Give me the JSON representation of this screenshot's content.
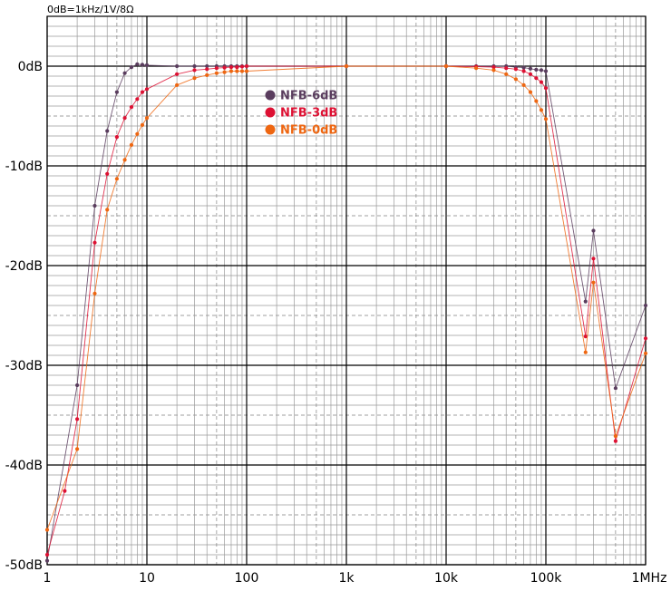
{
  "chart_data": {
    "type": "line",
    "title": "",
    "note": "0dB=1kHz/1V/8Ω",
    "xlabel": "",
    "ylabel": "",
    "x_scale": "log",
    "xlim": [
      1,
      1000000
    ],
    "ylim": [
      -50,
      5
    ],
    "grid": true,
    "legend_position": "upper-center",
    "x_ticks": [
      {
        "value": 1,
        "label": "1"
      },
      {
        "value": 10,
        "label": "10"
      },
      {
        "value": 100,
        "label": "100"
      },
      {
        "value": 1000,
        "label": "1k"
      },
      {
        "value": 10000,
        "label": "10k"
      },
      {
        "value": 100000,
        "label": "100k"
      },
      {
        "value": 1000000,
        "label": "1MHz"
      }
    ],
    "y_ticks": [
      {
        "value": 0,
        "label": "0dB"
      },
      {
        "value": -10,
        "label": "-10dB"
      },
      {
        "value": -20,
        "label": "-20dB"
      },
      {
        "value": -30,
        "label": "-30dB"
      },
      {
        "value": -40,
        "label": "-40dB"
      },
      {
        "value": -50,
        "label": "-50dB"
      }
    ],
    "series": [
      {
        "name": "NFB-6dB",
        "color": "#5a3d5e",
        "points": [
          [
            1,
            -49.6
          ],
          [
            2,
            -32
          ],
          [
            3,
            -14
          ],
          [
            4,
            -6.5
          ],
          [
            5,
            -2.6
          ],
          [
            6,
            -0.7
          ],
          [
            7,
            -0.1
          ],
          [
            8,
            0.2
          ],
          [
            9,
            0.15
          ],
          [
            10,
            0.1
          ],
          [
            20,
            0
          ],
          [
            30,
            0
          ],
          [
            40,
            0
          ],
          [
            50,
            0
          ],
          [
            60,
            0
          ],
          [
            70,
            0
          ],
          [
            80,
            0
          ],
          [
            90,
            0
          ],
          [
            100,
            0
          ],
          [
            1000,
            0
          ],
          [
            10000,
            0
          ],
          [
            20000,
            0
          ],
          [
            30000,
            0
          ],
          [
            40000,
            0
          ],
          [
            50000,
            -0.1
          ],
          [
            60000,
            -0.15
          ],
          [
            70000,
            -0.25
          ],
          [
            80000,
            -0.35
          ],
          [
            90000,
            -0.4
          ],
          [
            100000,
            -0.5
          ],
          [
            250000,
            -23.6
          ],
          [
            300000,
            -16.5
          ],
          [
            500000,
            -32.3
          ],
          [
            1000000,
            -24
          ]
        ]
      },
      {
        "name": "NFB-3dB",
        "color": "#dd1133",
        "points": [
          [
            1,
            -49
          ],
          [
            1.5,
            -42.6
          ],
          [
            2,
            -35.4
          ],
          [
            3,
            -17.7
          ],
          [
            4,
            -10.8
          ],
          [
            5,
            -7.1
          ],
          [
            6,
            -5.2
          ],
          [
            7,
            -4.1
          ],
          [
            8,
            -3.3
          ],
          [
            9,
            -2.6
          ],
          [
            10,
            -2.3
          ],
          [
            20,
            -0.8
          ],
          [
            30,
            -0.4
          ],
          [
            40,
            -0.3
          ],
          [
            50,
            -0.2
          ],
          [
            60,
            -0.15
          ],
          [
            70,
            -0.1
          ],
          [
            80,
            -0.1
          ],
          [
            90,
            -0.05
          ],
          [
            100,
            0
          ],
          [
            1000,
            0
          ],
          [
            10000,
            0
          ],
          [
            20000,
            -0.05
          ],
          [
            30000,
            -0.1
          ],
          [
            40000,
            -0.2
          ],
          [
            50000,
            -0.3
          ],
          [
            60000,
            -0.5
          ],
          [
            70000,
            -0.8
          ],
          [
            80000,
            -1.2
          ],
          [
            90000,
            -1.6
          ],
          [
            100000,
            -2.2
          ],
          [
            250000,
            -27.1
          ],
          [
            300000,
            -19.3
          ],
          [
            500000,
            -37.6
          ],
          [
            1000000,
            -27.3
          ]
        ]
      },
      {
        "name": "NFB-0dB",
        "color": "#ee6611",
        "points": [
          [
            1,
            -46.5
          ],
          [
            2,
            -38.4
          ],
          [
            3,
            -22.8
          ],
          [
            4,
            -14.4
          ],
          [
            5,
            -11.3
          ],
          [
            6,
            -9.4
          ],
          [
            7,
            -7.9
          ],
          [
            8,
            -6.8
          ],
          [
            9,
            -5.9
          ],
          [
            10,
            -5.2
          ],
          [
            20,
            -1.9
          ],
          [
            30,
            -1.2
          ],
          [
            40,
            -0.9
          ],
          [
            50,
            -0.7
          ],
          [
            60,
            -0.6
          ],
          [
            70,
            -0.5
          ],
          [
            80,
            -0.5
          ],
          [
            90,
            -0.5
          ],
          [
            100,
            -0.5
          ],
          [
            1000,
            0
          ],
          [
            10000,
            0
          ],
          [
            20000,
            -0.2
          ],
          [
            30000,
            -0.4
          ],
          [
            40000,
            -0.8
          ],
          [
            50000,
            -1.3
          ],
          [
            60000,
            -1.9
          ],
          [
            70000,
            -2.6
          ],
          [
            80000,
            -3.5
          ],
          [
            90000,
            -4.4
          ],
          [
            100000,
            -5.3
          ],
          [
            250000,
            -28.7
          ],
          [
            300000,
            -21.7
          ],
          [
            500000,
            -37.1
          ],
          [
            1000000,
            -28.8
          ]
        ]
      }
    ]
  }
}
